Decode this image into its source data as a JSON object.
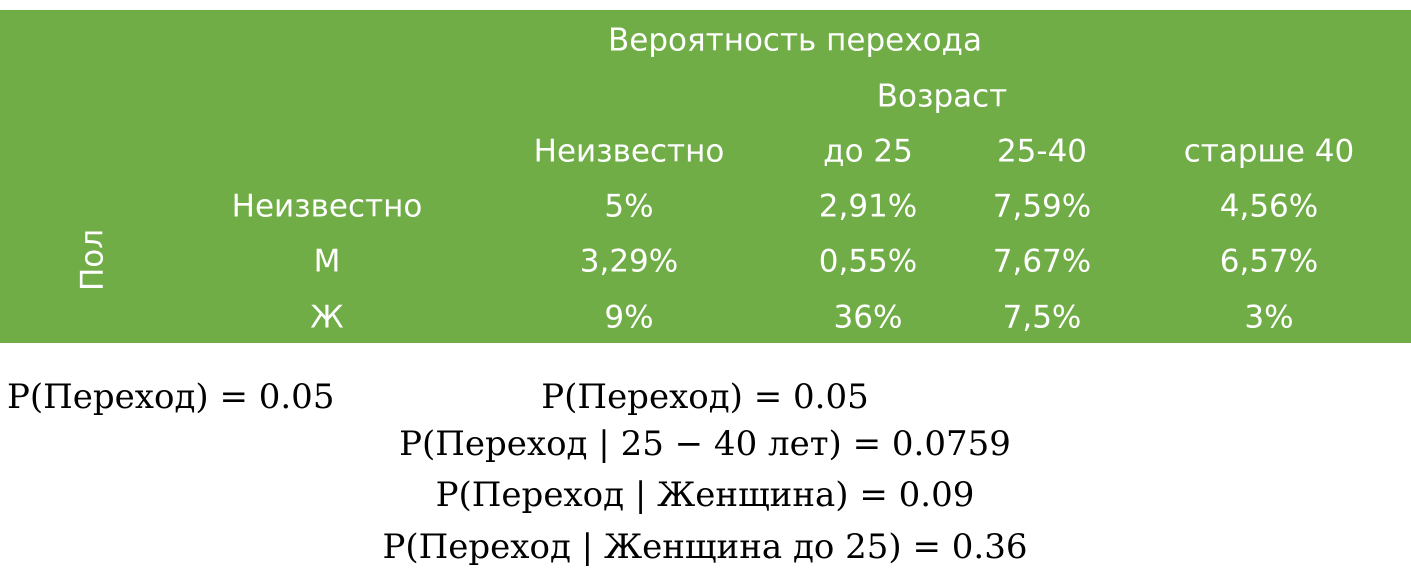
{
  "table": {
    "title": "Вероятность перехода",
    "age_group_label": "Возраст",
    "gender_label": "Пол",
    "columns": [
      "Неизвестно",
      "до 25",
      "25-40",
      "старше 40"
    ],
    "rows": [
      {
        "label": "Неизвестно",
        "values": [
          "5%",
          "2,91%",
          "7,59%",
          "4,56%"
        ]
      },
      {
        "label": "М",
        "values": [
          "3,29%",
          "0,55%",
          "7,67%",
          "6,57%"
        ]
      },
      {
        "label": "Ж",
        "values": [
          "9%",
          "36%",
          "7,5%",
          "3%"
        ]
      }
    ]
  },
  "formulas": {
    "left": "P(Переход) = 0.05",
    "center": [
      "P(Переход) = 0.05",
      "P(Переход | 25 − 40 лет) = 0.0759",
      "P(Переход | Женщина) = 0.09",
      "P(Переход | Женщина до 25) = 0.36"
    ]
  }
}
